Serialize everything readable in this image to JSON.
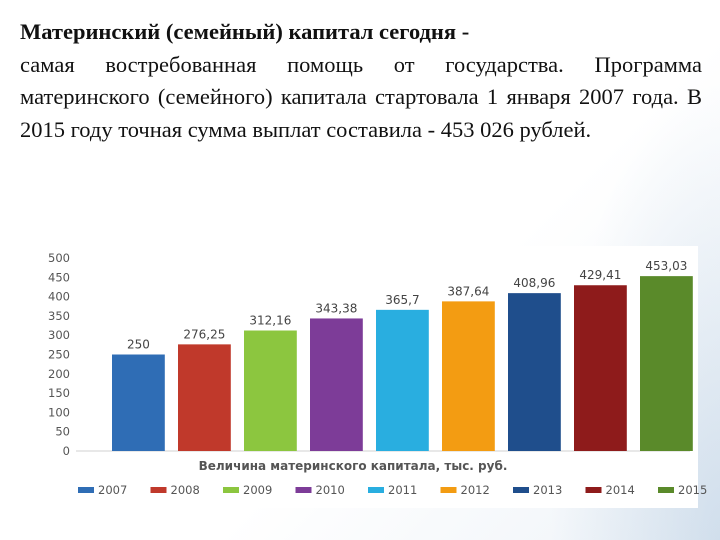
{
  "text": {
    "line1": "Материнский (семейный) капитал сегодня -",
    "rest": "самая востребованная помощь от государства. Программа материнского (семейного) капитала стартовала 1 января 2007 года. В 2015 году точная сумма выплат составила - 453 026 рублей."
  },
  "chart_data": {
    "type": "bar",
    "categories": [
      "2007",
      "2008",
      "2009",
      "2010",
      "2011",
      "2012",
      "2013",
      "2014",
      "2015"
    ],
    "values": [
      250,
      276.25,
      312.16,
      343.38,
      365.7,
      387.64,
      408.96,
      429.41,
      453.03
    ],
    "value_labels": [
      "250",
      "276,25",
      "312,16",
      "343,38",
      "365,7",
      "387,64",
      "408,96",
      "429,41",
      "453,03"
    ],
    "colors": [
      "#2f6db5",
      "#c0392b",
      "#8cc63f",
      "#7d3c98",
      "#29aee0",
      "#f39c12",
      "#1f4e8c",
      "#8e1b1b",
      "#5a8a2a"
    ],
    "xlabel": "Величина материнского капитала, тыс. руб.",
    "ylim": [
      0,
      500
    ],
    "yticks": [
      0,
      50,
      100,
      150,
      200,
      250,
      300,
      350,
      400,
      450,
      500
    ],
    "grid": false,
    "legend_position": "bottom"
  }
}
